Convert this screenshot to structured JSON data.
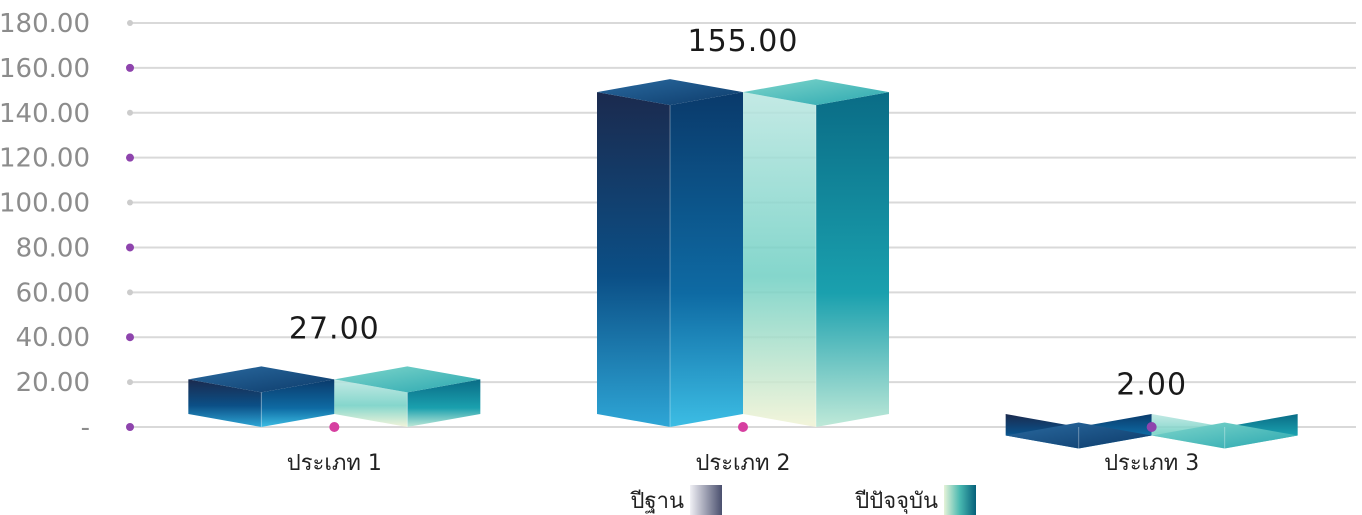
{
  "chart_data": {
    "type": "bar",
    "categories": [
      "ประเภท 1",
      "ประเภท 2",
      "ประเภท 3"
    ],
    "series": [
      {
        "name": "ปีฐาน",
        "values": [
          27,
          155,
          2
        ]
      },
      {
        "name": "ปีปัจจุบัน",
        "values": [
          27,
          155,
          2
        ]
      }
    ],
    "data_labels": [
      "27.00",
      "155.00",
      "2.00"
    ],
    "y_tick_labels": [
      "-",
      "20.00",
      "40.00",
      "60.00",
      "80.00",
      "100.00",
      "120.00",
      "140.00",
      "160.00",
      "180.00"
    ],
    "ylim": [
      0,
      180
    ],
    "title": "",
    "xlabel": "",
    "ylabel": "",
    "grid": true,
    "legend_position": "bottom",
    "colors": {
      "series1_dark": "#1b2a4e",
      "series1_mid": "#0b4f86",
      "series1_light": "#2ea6d6",
      "series2_dark": "#0a6c86",
      "series2_mid": "#5ccbbf",
      "series2_light": "#f1f3d4",
      "grid": "#d9d9d9",
      "axis_dot_purple": "#8e44ad",
      "axis_dot_pink": "#d63fa0"
    }
  }
}
